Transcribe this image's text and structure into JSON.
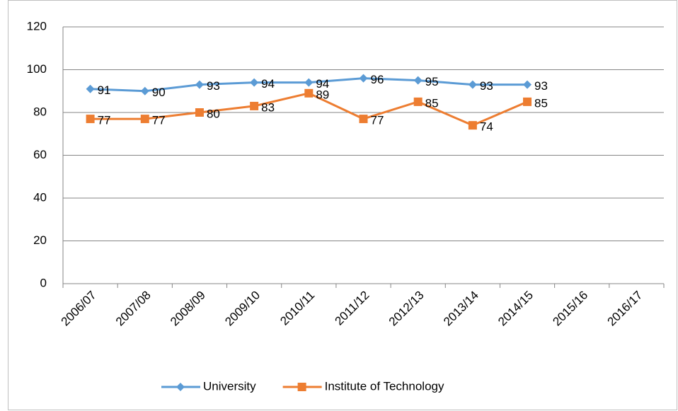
{
  "chart_data": {
    "type": "line",
    "categories": [
      "2006/07",
      "2007/08",
      "2008/09",
      "2009/10",
      "2010/11",
      "2011/12",
      "2012/13",
      "2013/14",
      "2014/15",
      "2015/16",
      "2016/17"
    ],
    "series": [
      {
        "name": "University",
        "color": "#5b9bd5",
        "marker": "diamond",
        "values": [
          91,
          90,
          93,
          94,
          94,
          96,
          95,
          93,
          93,
          null,
          null
        ]
      },
      {
        "name": "Institute of Technology",
        "color": "#ed7d31",
        "marker": "square",
        "values": [
          77,
          77,
          80,
          83,
          89,
          77,
          85,
          74,
          85,
          null,
          null
        ]
      }
    ],
    "ylim": [
      0,
      120
    ],
    "yticks": [
      0,
      20,
      40,
      60,
      80,
      100,
      120
    ],
    "grid": true,
    "legend": "bottom"
  }
}
